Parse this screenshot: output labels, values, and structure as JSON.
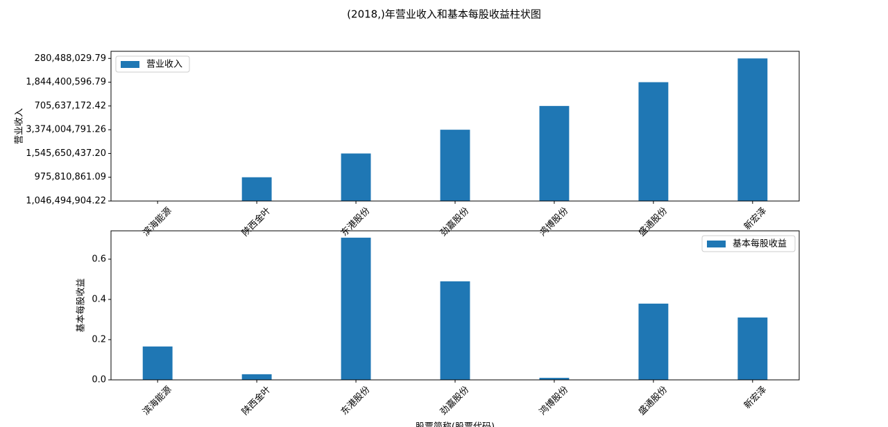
{
  "title": "(2018,)年营业收入和基本每股收益柱状图",
  "chart_data": [
    {
      "type": "bar",
      "ylabel": "营业收入",
      "legend": "upper left",
      "categories": [
        "滨海能源",
        "陕西金叶",
        "东港股份",
        "劲嘉股份",
        "鸿博股份",
        "盛通股份",
        "新宏泽"
      ],
      "y_categories": [
        "1,046,494,904.22",
        "975,810,861.09",
        "1,545,650,437.20",
        "3,374,004,791.26",
        "705,637,172.42",
        "1,844,400,596.79",
        "280,488,029.79"
      ],
      "series": [
        {
          "name": "营业收入",
          "color": "#1f77b4",
          "values": [
            "1,046,494,904.22",
            "975,810,861.09",
            "1,545,650,437.20",
            "3,374,004,791.26",
            "705,637,172.42",
            "1,844,400,596.79",
            "280,488,029.79"
          ]
        }
      ],
      "ylim": [
        0,
        6.3
      ]
    },
    {
      "type": "bar",
      "ylabel": "基本每股收益",
      "xlabel": "股票简称(股票代码)",
      "legend": "upper right",
      "categories": [
        "滨海能源",
        "陕西金叶",
        "东港股份",
        "劲嘉股份",
        "鸿博股份",
        "盛通股份",
        "新宏泽"
      ],
      "series": [
        {
          "name": "基本每股收益",
          "color": "#1f77b4",
          "values": [
            0.166,
            0.028,
            0.707,
            0.49,
            0.01,
            0.379,
            0.31
          ]
        }
      ],
      "ylim": [
        0,
        0.741
      ],
      "yticks": [
        {
          "value": 0,
          "label": "0.0"
        },
        0.2,
        0.4,
        0.6
      ]
    }
  ]
}
